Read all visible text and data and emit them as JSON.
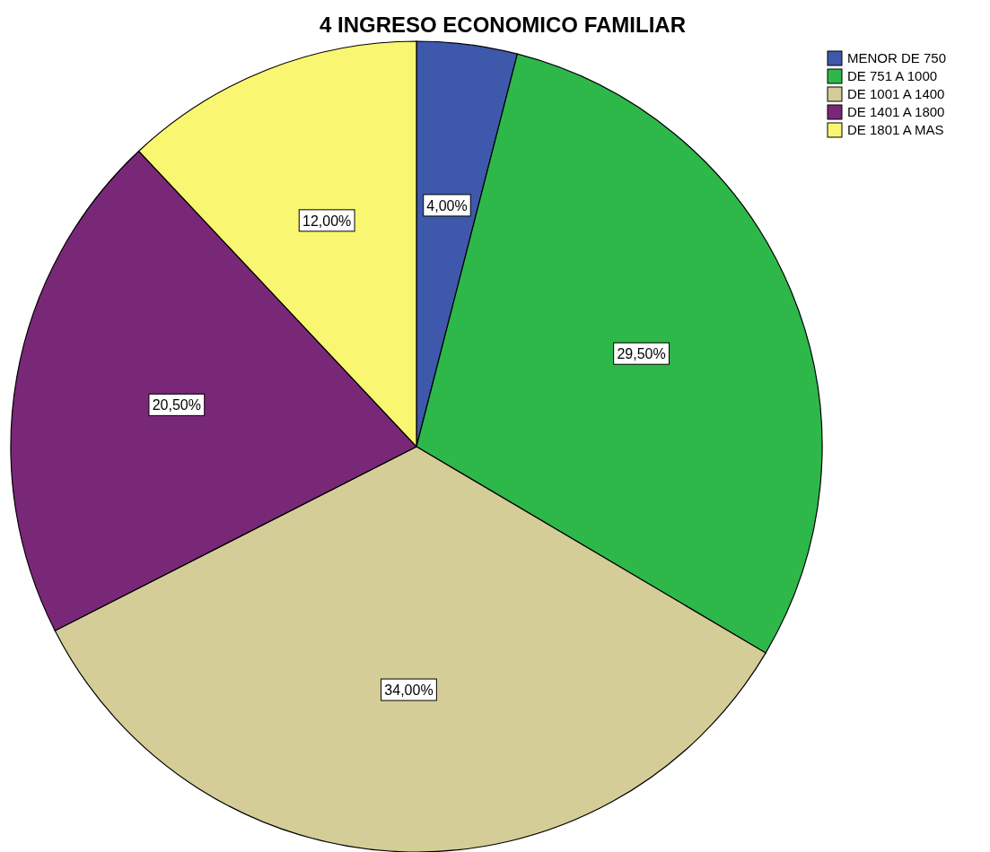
{
  "chart_data": {
    "type": "pie",
    "title": "4 INGRESO ECONOMICO FAMILIAR",
    "categories": [
      "MENOR DE 750",
      "DE 751 A 1000",
      "DE 1001 A 1400",
      "DE 1401 A 1800",
      "DE 1801 A MAS"
    ],
    "values": [
      4,
      29.5,
      34,
      20.5,
      12
    ],
    "value_labels": [
      "4,00%",
      "29,50%",
      "34,00%",
      "20,50%",
      "12,00%"
    ],
    "colors": [
      "#3e58ac",
      "#2eb84a",
      "#d4cd97",
      "#792878",
      "#f9f671"
    ],
    "legend": "top right"
  }
}
